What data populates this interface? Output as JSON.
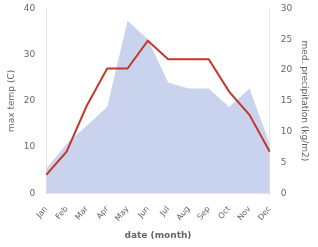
{
  "chart_data": {
    "type": "line",
    "categories": [
      "Jan",
      "Feb",
      "Mar",
      "Apr",
      "May",
      "Jun",
      "Jul",
      "Aug",
      "Sep",
      "Oct",
      "Nov",
      "Dec"
    ],
    "series": [
      {
        "type": "line",
        "color": "#c0392b",
        "values": [
          4,
          9,
          19,
          27,
          27,
          33,
          29,
          29,
          29,
          22,
          17,
          9
        ]
      },
      {
        "type": "area",
        "color": "#b8c4e8",
        "axis": "y2",
        "values": [
          4,
          8,
          11,
          14,
          28,
          25,
          18,
          17,
          17,
          14,
          17,
          8
        ]
      }
    ],
    "xlabel": "date (month)",
    "ylabel": "max temp (C)",
    "y2label": "med. precipitation (kg/m2)",
    "ylim": [
      0,
      40
    ],
    "yticks": [
      0,
      10,
      20,
      30,
      40
    ],
    "y2lim": [
      0,
      30
    ],
    "y2ticks": [
      0,
      5,
      10,
      15,
      20,
      25,
      30
    ],
    "grid": false
  }
}
